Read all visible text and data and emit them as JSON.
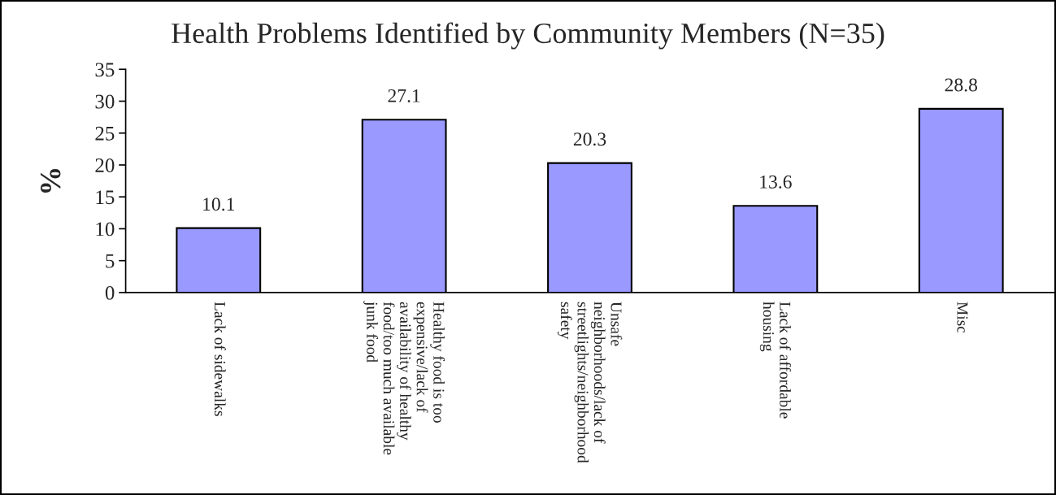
{
  "chart_data": {
    "type": "bar",
    "title": "Health Problems Identified by Community Members (N=35)",
    "ylabel": "%",
    "categories": [
      "Lack of sidewalks",
      "Healthy food is too\nexpensive/lack of\navailability of healthy\nfood/too much available\njunk food",
      "Unsafe\nneighborhoods/lack of\nstreetlights/neighborhood\nsafety",
      "Lack of affordable\nhousing",
      "Misc"
    ],
    "values": [
      10.1,
      27.1,
      20.3,
      13.6,
      28.8
    ],
    "color": "#9999ff",
    "ylim": [
      0,
      35
    ],
    "yticks": [
      0,
      5,
      10,
      15,
      20,
      25,
      30,
      35
    ],
    "grid": false,
    "data_labels": true
  }
}
